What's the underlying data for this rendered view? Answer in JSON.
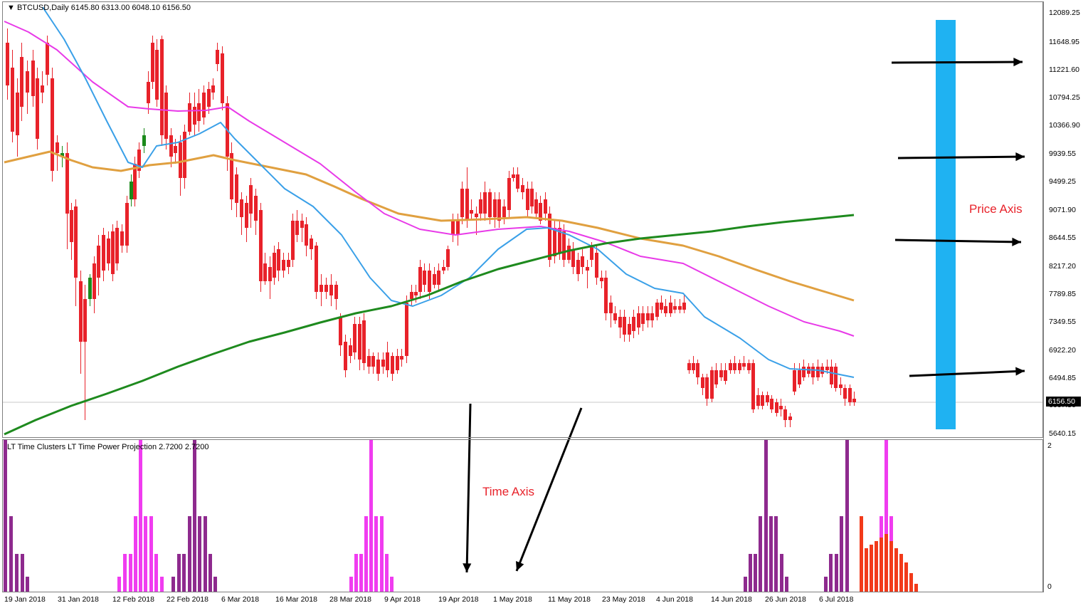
{
  "chart": {
    "title_line": "▼ BTCUSD,Daily  6145.80 6313.00 6048.10 6156.50",
    "current_price": "6156.50",
    "price_labels": [
      "12089.25",
      "11648.95",
      "11221.60",
      "10794.25",
      "10366.90",
      "9939.55",
      "9499.25",
      "9071.90",
      "8644.55",
      "8217.20",
      "7789.85",
      "7349.55",
      "6922.20",
      "6494.85",
      "6067.50",
      "5640.15"
    ],
    "date_labels": [
      "19 Jan 2018",
      "31 Jan 2018",
      "12 Feb 2018",
      "22 Feb 2018",
      "6 Mar 2018",
      "16 Mar 2018",
      "28 Mar 2018",
      "9 Apr 2018",
      "19 Apr 2018",
      "1 May 2018",
      "11 May 2018",
      "23 May 2018",
      "4 Jun 2018",
      "14 Jun 2018",
      "26 Jun 2018",
      "6 Jul 2018"
    ],
    "colors": {
      "bull": "#1a8a1a",
      "bear": "#e8222a",
      "ma_fast": "#3aa0e8",
      "ma_mid": "#e83ae8",
      "ma_slow": "#e0a040",
      "ma_long": "#1e8a1e",
      "highlight": "#1fb2f2"
    }
  },
  "indicator": {
    "title": "LT Time Clusters  LT Time Power Projection 2.7200 2.7200",
    "scale_top": "2",
    "scale_bottom": "0",
    "colors": {
      "purple": "#8e2a8e",
      "magenta": "#f03cf0",
      "red": "#f23a1a"
    }
  },
  "annotations": {
    "price_axis": "Price Axis",
    "time_axis": "Time Axis"
  },
  "chart_data": {
    "type": "candlestick",
    "symbol": "BTCUSD",
    "timeframe": "Daily",
    "last_ohlc": {
      "open": 6145.8,
      "high": 6313.0,
      "low": 6048.1,
      "close": 6156.5
    },
    "ylim": [
      5640.15,
      12089.25
    ],
    "x_range": [
      "19 Jan 2018",
      "6 Jul 2018"
    ],
    "sample_closes": [
      11400,
      10500,
      9950,
      9200,
      8200,
      6900,
      7200,
      8800,
      8200,
      9100,
      9300,
      8500,
      7600,
      6700,
      6200,
      6156.5
    ],
    "moving_averages": [
      {
        "name": "",
        "start": 12089,
        "end": 6500
      },
      {
        "name": "",
        "start": 11900,
        "end": 7150
      },
      {
        "name": "",
        "start": 9850,
        "end": 7720
      },
      {
        "name": "",
        "start": 5640,
        "end": 9030
      }
    ],
    "indicator_cluster_dates": [
      "19 Jan 2018",
      "12 Feb 2018",
      "22 Feb 2018",
      "28 Mar 2018",
      "26 Jun 2018",
      "6 Jul 2018"
    ],
    "indicator_ylim": [
      0,
      2
    ]
  }
}
